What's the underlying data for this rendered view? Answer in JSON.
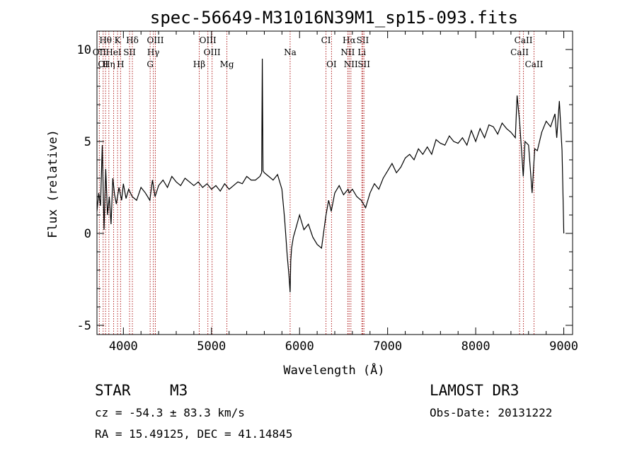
{
  "chart_data": {
    "type": "line",
    "title": "spec-56649-M31016N39M1_sp15-093.fits",
    "xlabel": "Wavelength (Å)",
    "ylabel": "Flux (relative)",
    "xlim": [
      3700,
      9100
    ],
    "ylim": [
      -5.5,
      11
    ],
    "x_ticks": [
      4000,
      5000,
      6000,
      7000,
      8000,
      9000
    ],
    "y_ticks": [
      -5,
      0,
      5,
      10
    ],
    "series": [
      {
        "name": "flux",
        "x": [
          3700,
          3720,
          3740,
          3760,
          3780,
          3800,
          3820,
          3840,
          3860,
          3880,
          3900,
          3920,
          3950,
          3980,
          4000,
          4030,
          4060,
          4100,
          4150,
          4200,
          4250,
          4300,
          4330,
          4360,
          4400,
          4450,
          4500,
          4550,
          4600,
          4650,
          4700,
          4750,
          4800,
          4850,
          4900,
          4950,
          5000,
          5050,
          5100,
          5150,
          5200,
          5250,
          5300,
          5350,
          5400,
          5450,
          5500,
          5550,
          5570,
          5577,
          5585,
          5600,
          5650,
          5700,
          5750,
          5800,
          5830,
          5860,
          5880,
          5893,
          5900,
          5910,
          5930,
          5960,
          6000,
          6050,
          6100,
          6150,
          6200,
          6250,
          6280,
          6300,
          6330,
          6360,
          6400,
          6450,
          6500,
          6550,
          6563,
          6600,
          6650,
          6700,
          6750,
          6800,
          6850,
          6900,
          6950,
          7000,
          7050,
          7100,
          7150,
          7200,
          7250,
          7300,
          7350,
          7400,
          7450,
          7500,
          7550,
          7600,
          7650,
          7700,
          7750,
          7800,
          7850,
          7900,
          7950,
          8000,
          8050,
          8100,
          8150,
          8200,
          8250,
          8300,
          8350,
          8400,
          8450,
          8470,
          8500,
          8540,
          8560,
          8600,
          8640,
          8670,
          8700,
          8750,
          8800,
          8850,
          8900,
          8920,
          8950,
          8980,
          9000
        ],
        "values": [
          1.2,
          2.2,
          1.5,
          4.8,
          0.2,
          3.5,
          1.0,
          2.0,
          0.5,
          3.0,
          2.1,
          1.6,
          2.5,
          1.8,
          2.7,
          1.9,
          2.4,
          2.0,
          1.8,
          2.5,
          2.2,
          1.8,
          2.9,
          2.0,
          2.6,
          2.9,
          2.5,
          3.1,
          2.8,
          2.6,
          3.0,
          2.8,
          2.6,
          2.8,
          2.5,
          2.7,
          2.4,
          2.6,
          2.3,
          2.7,
          2.4,
          2.6,
          2.8,
          2.7,
          3.1,
          2.9,
          2.9,
          3.1,
          3.3,
          9.5,
          3.4,
          3.3,
          3.1,
          2.9,
          3.2,
          2.4,
          0.8,
          -1.2,
          -2.3,
          -3.2,
          -1.5,
          -0.8,
          -0.2,
          0.3,
          1.0,
          0.2,
          0.5,
          -0.2,
          -0.6,
          -0.8,
          0.3,
          1.0,
          1.8,
          1.2,
          2.2,
          2.6,
          2.1,
          2.4,
          2.2,
          2.4,
          2.0,
          1.8,
          1.4,
          2.2,
          2.7,
          2.4,
          3.0,
          3.4,
          3.8,
          3.3,
          3.6,
          4.1,
          4.3,
          4.0,
          4.6,
          4.3,
          4.7,
          4.3,
          5.1,
          4.9,
          4.8,
          5.3,
          5.0,
          4.9,
          5.2,
          4.8,
          5.6,
          5.0,
          5.7,
          5.2,
          5.9,
          5.8,
          5.4,
          6.0,
          5.7,
          5.5,
          5.2,
          7.5,
          6.0,
          3.1,
          5.0,
          4.8,
          2.2,
          4.6,
          4.5,
          5.5,
          6.1,
          5.8,
          6.5,
          5.2,
          7.2,
          4.5,
          0.0
        ]
      }
    ],
    "lines": [
      {
        "label": "Hθ",
        "x": 3798,
        "row": 1
      },
      {
        "label": "K",
        "x": 3934,
        "row": 1
      },
      {
        "label": "Hδ",
        "x": 4102,
        "row": 1
      },
      {
        "label": "OIII",
        "x": 4363,
        "row": 1
      },
      {
        "label": "OIII",
        "x": 4959,
        "row": 1
      },
      {
        "label": "CI",
        "x": 6300,
        "row": 1
      },
      {
        "label": "Hα",
        "x": 6563,
        "row": 1
      },
      {
        "label": "SII",
        "x": 6717,
        "row": 1
      },
      {
        "label": "CaII",
        "x": 8542,
        "row": 1
      },
      {
        "label": "OII",
        "x": 3727,
        "row": 2
      },
      {
        "label": "HeI",
        "x": 3889,
        "row": 2
      },
      {
        "label": "SII",
        "x": 4070,
        "row": 2
      },
      {
        "label": "Hγ",
        "x": 4340,
        "row": 2
      },
      {
        "label": "OIII",
        "x": 5007,
        "row": 2
      },
      {
        "label": "Na",
        "x": 5893,
        "row": 2
      },
      {
        "label": "NII",
        "x": 6548,
        "row": 2
      },
      {
        "label": "Li",
        "x": 6707,
        "row": 2
      },
      {
        "label": "CaII",
        "x": 8498,
        "row": 2
      },
      {
        "label": "OI",
        "x": 3770,
        "row": 3
      },
      {
        "label": "Hη",
        "x": 3835,
        "row": 3
      },
      {
        "label": "H",
        "x": 3968,
        "row": 3
      },
      {
        "label": "G",
        "x": 4304,
        "row": 3
      },
      {
        "label": "Hβ",
        "x": 4861,
        "row": 3
      },
      {
        "label": "Mg",
        "x": 5175,
        "row": 3
      },
      {
        "label": "OI",
        "x": 6363,
        "row": 3
      },
      {
        "label": "NII",
        "x": 6583,
        "row": 3
      },
      {
        "label": "SII",
        "x": 6731,
        "row": 3
      },
      {
        "label": "CaII",
        "x": 8662,
        "row": 3
      }
    ]
  },
  "info": {
    "object_class": "STAR",
    "subclass": "M3",
    "survey": "LAMOST DR3",
    "redshift": "cz = -54.3 ± 83.3 km/s",
    "obs_date": "Obs-Date: 20131222",
    "coords": "RA =  15.49125, DEC =  41.14845"
  },
  "colors": {
    "spectrum": "#000000",
    "line_marker": "#b22222",
    "axis": "#000000"
  }
}
